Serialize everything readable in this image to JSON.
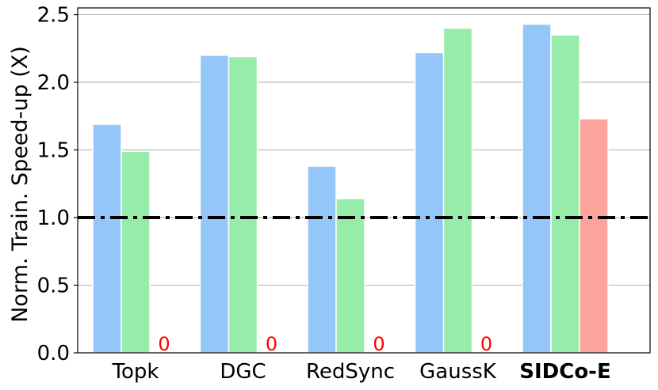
{
  "chart_data": {
    "type": "bar",
    "categories": [
      "Topk",
      "DGC",
      "RedSync",
      "GaussK",
      "SIDCo-E"
    ],
    "highlight_category": "SIDCo-E",
    "highlight_color": "#ff0000",
    "series": [
      {
        "values": [
          1.69,
          2.2,
          1.38,
          2.22,
          2.43
        ],
        "color": "#94c6fa"
      },
      {
        "values": [
          1.49,
          2.19,
          1.14,
          2.4,
          2.35
        ],
        "color": "#98eca9"
      },
      {
        "values": [
          0,
          0,
          0,
          0,
          1.73
        ],
        "color": "#fca39c"
      }
    ],
    "zero_value_label": "0",
    "zero_label_color": "#ff0000",
    "ylabel": "Norm. Train. Speed-up (X)",
    "xlabel": "",
    "ylim": [
      0,
      2.55
    ],
    "yticks": [
      "0.0",
      "0.5",
      "1.0",
      "1.5",
      "2.0",
      "2.5"
    ],
    "ytick_values": [
      0,
      0.5,
      1.0,
      1.5,
      2.0,
      2.5
    ],
    "grid": true,
    "reference_line": {
      "y": 1.0,
      "style": "dash-dot",
      "color": "#000000"
    }
  }
}
